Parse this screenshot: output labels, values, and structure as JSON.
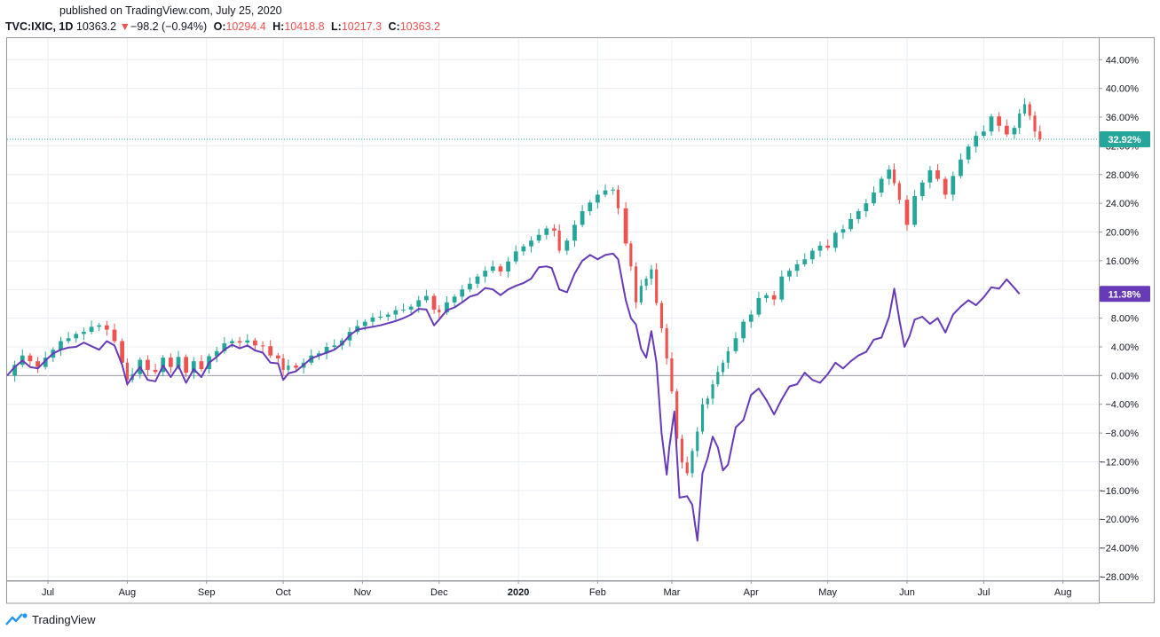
{
  "header": {
    "published": "published on TradingView.com, July 25, 2020",
    "symbol": "TVC:IXIC, 1D",
    "last": "10363.2",
    "change_arrow": "▼",
    "change": "−98.2 (−0.94%)",
    "open_label": "O:",
    "open": "10294.4",
    "high_label": "H:",
    "high": "10418.8",
    "low_label": "L:",
    "low": "10217.3",
    "close_label": "C:",
    "close": "10363.2"
  },
  "footer": {
    "brand": "TradingView",
    "logo_icon": "tradingview-logo-icon"
  },
  "colors": {
    "up": "#26a69a",
    "down": "#ef5350",
    "compare_line": "#673ab7",
    "last_price_badge": "#26a69a",
    "compare_badge": "#673ab7",
    "grid": "#e9eef2",
    "zero_line": "#9598a1"
  },
  "chart_data": {
    "type": "line",
    "y_axis_ticks": [
      "44.00%",
      "40.00%",
      "36.00%",
      "32.00%",
      "28.00%",
      "24.00%",
      "20.00%",
      "16.00%",
      "12.00%",
      "8.00%",
      "4.00%",
      "0.00%",
      "−4.00%",
      "−8.00%",
      "−12.00%",
      "−16.00%",
      "−20.00%",
      "−24.00%",
      "−28.00%"
    ],
    "y_tick_values": [
      44,
      40,
      36,
      32,
      28,
      24,
      20,
      16,
      12,
      8,
      4,
      0,
      -4,
      -8,
      -12,
      -16,
      -20,
      -24,
      -28
    ],
    "ylim": [
      -28.5,
      47
    ],
    "x_axis_labels": [
      {
        "label": "Jul",
        "bold": false,
        "d": 16
      },
      {
        "label": "Aug",
        "bold": false,
        "d": 47
      },
      {
        "label": "Sep",
        "bold": false,
        "d": 78
      },
      {
        "label": "Oct",
        "bold": false,
        "d": 108
      },
      {
        "label": "Nov",
        "bold": false,
        "d": 139
      },
      {
        "label": "Dec",
        "bold": false,
        "d": 169
      },
      {
        "label": "2020",
        "bold": true,
        "d": 200
      },
      {
        "label": "Feb",
        "bold": false,
        "d": 231
      },
      {
        "label": "Mar",
        "bold": false,
        "d": 260
      },
      {
        "label": "Apr",
        "bold": false,
        "d": 291
      },
      {
        "label": "May",
        "bold": false,
        "d": 321
      },
      {
        "label": "Jun",
        "bold": false,
        "d": 352
      },
      {
        "label": "Jul",
        "bold": false,
        "d": 382
      },
      {
        "label": "Aug",
        "bold": false,
        "d": 413
      }
    ],
    "x_domain_days": [
      0,
      427
    ],
    "last_value_badge": "32.92%",
    "last_value": 32.92,
    "compare_badge": "11.38%",
    "compare_value": 11.38,
    "grid": true,
    "series": [
      {
        "style": "candlestick",
        "points": [
          [
            0,
            0.0
          ],
          [
            3,
            1.5
          ],
          [
            6,
            2.8
          ],
          [
            9,
            2.0
          ],
          [
            12,
            1.2
          ],
          [
            15,
            2.5
          ],
          [
            18,
            3.6
          ],
          [
            21,
            4.8
          ],
          [
            24,
            5.2
          ],
          [
            27,
            5.8
          ],
          [
            30,
            6.1
          ],
          [
            33,
            6.8
          ],
          [
            36,
            7.0
          ],
          [
            39,
            6.4
          ],
          [
            42,
            4.8
          ],
          [
            45,
            1.8
          ],
          [
            47,
            -0.6
          ],
          [
            49,
            0.2
          ],
          [
            52,
            2.2
          ],
          [
            55,
            0.8
          ],
          [
            58,
            0.5
          ],
          [
            61,
            2.5
          ],
          [
            64,
            1.2
          ],
          [
            67,
            2.6
          ],
          [
            70,
            0.4
          ],
          [
            73,
            2.0
          ],
          [
            76,
            0.9
          ],
          [
            79,
            2.7
          ],
          [
            82,
            3.4
          ],
          [
            85,
            4.5
          ],
          [
            88,
            4.8
          ],
          [
            91,
            4.6
          ],
          [
            94,
            4.9
          ],
          [
            97,
            4.2
          ],
          [
            100,
            4.1
          ],
          [
            103,
            2.8
          ],
          [
            106,
            2.4
          ],
          [
            108,
            0.8
          ],
          [
            110,
            1.4
          ],
          [
            113,
            1.1
          ],
          [
            116,
            1.8
          ],
          [
            119,
            2.8
          ],
          [
            122,
            3.1
          ],
          [
            125,
            4.0
          ],
          [
            128,
            4.2
          ],
          [
            131,
            4.9
          ],
          [
            134,
            6.1
          ],
          [
            137,
            6.9
          ],
          [
            140,
            7.5
          ],
          [
            143,
            8.1
          ],
          [
            146,
            8.2
          ],
          [
            149,
            8.5
          ],
          [
            152,
            9.1
          ],
          [
            155,
            9.2
          ],
          [
            158,
            9.6
          ],
          [
            161,
            10.5
          ],
          [
            164,
            11.1
          ],
          [
            167,
            9.2
          ],
          [
            169,
            8.8
          ],
          [
            172,
            10.2
          ],
          [
            175,
            11.0
          ],
          [
            178,
            12.0
          ],
          [
            181,
            12.8
          ],
          [
            184,
            13.8
          ],
          [
            187,
            14.6
          ],
          [
            190,
            15.2
          ],
          [
            193,
            14.5
          ],
          [
            196,
            15.9
          ],
          [
            199,
            17.3
          ],
          [
            202,
            18.0
          ],
          [
            205,
            18.8
          ],
          [
            208,
            19.6
          ],
          [
            211,
            20.5
          ],
          [
            214,
            20.2
          ],
          [
            216,
            17.4
          ],
          [
            219,
            18.8
          ],
          [
            222,
            21.0
          ],
          [
            225,
            22.9
          ],
          [
            228,
            24.1
          ],
          [
            231,
            25.2
          ],
          [
            234,
            25.8
          ],
          [
            237,
            25.9
          ],
          [
            239,
            23.3
          ],
          [
            242,
            18.4
          ],
          [
            244,
            15.2
          ],
          [
            246,
            10.2
          ],
          [
            248,
            12.5
          ],
          [
            250,
            13.5
          ],
          [
            252,
            14.8
          ],
          [
            254,
            10.1
          ],
          [
            256,
            6.6
          ],
          [
            258,
            2.4
          ],
          [
            260,
            -2.2
          ],
          [
            262,
            -8.8
          ],
          [
            264,
            -12.1
          ],
          [
            266,
            -13.6
          ],
          [
            268,
            -10.5
          ],
          [
            270,
            -7.8
          ],
          [
            272,
            -4.0
          ],
          [
            274,
            -3.2
          ],
          [
            276,
            -1.2
          ],
          [
            278,
            0.5
          ],
          [
            280,
            1.8
          ],
          [
            282,
            3.4
          ],
          [
            285,
            5.2
          ],
          [
            288,
            7.5
          ],
          [
            291,
            8.5
          ],
          [
            294,
            10.8
          ],
          [
            297,
            11.2
          ],
          [
            300,
            10.6
          ],
          [
            303,
            13.8
          ],
          [
            306,
            14.6
          ],
          [
            309,
            15.5
          ],
          [
            312,
            16.2
          ],
          [
            315,
            17.4
          ],
          [
            318,
            18.1
          ],
          [
            321,
            17.8
          ],
          [
            324,
            19.9
          ],
          [
            327,
            20.4
          ],
          [
            330,
            21.8
          ],
          [
            333,
            22.9
          ],
          [
            336,
            24.0
          ],
          [
            339,
            25.5
          ],
          [
            342,
            27.4
          ],
          [
            345,
            28.7
          ],
          [
            347,
            26.8
          ],
          [
            349,
            24.5
          ],
          [
            352,
            21.0
          ],
          [
            355,
            25.0
          ],
          [
            358,
            26.9
          ],
          [
            361,
            28.6
          ],
          [
            364,
            27.4
          ],
          [
            367,
            25.2
          ],
          [
            370,
            27.8
          ],
          [
            373,
            30.1
          ],
          [
            376,
            31.9
          ],
          [
            379,
            33.4
          ],
          [
            382,
            34.0
          ],
          [
            385,
            36.1
          ],
          [
            388,
            34.8
          ],
          [
            391,
            33.6
          ],
          [
            394,
            34.5
          ],
          [
            396,
            36.5
          ],
          [
            398,
            37.8
          ],
          [
            400,
            36.2
          ],
          [
            402,
            34.0
          ],
          [
            404,
            32.92
          ]
        ]
      },
      {
        "style": "line",
        "points": [
          [
            0,
            0.0
          ],
          [
            3,
            1.2
          ],
          [
            6,
            2.1
          ],
          [
            9,
            1.2
          ],
          [
            12,
            1.0
          ],
          [
            15,
            2.1
          ],
          [
            18,
            3.1
          ],
          [
            21,
            3.6
          ],
          [
            24,
            3.9
          ],
          [
            27,
            4.0
          ],
          [
            30,
            4.6
          ],
          [
            33,
            4.1
          ],
          [
            36,
            3.6
          ],
          [
            39,
            4.8
          ],
          [
            42,
            4.2
          ],
          [
            45,
            1.5
          ],
          [
            47,
            -1.2
          ],
          [
            49,
            -0.2
          ],
          [
            52,
            1.2
          ],
          [
            55,
            -0.6
          ],
          [
            58,
            -0.8
          ],
          [
            61,
            1.4
          ],
          [
            64,
            -0.2
          ],
          [
            67,
            1.4
          ],
          [
            70,
            -1.0
          ],
          [
            73,
            0.9
          ],
          [
            76,
            -0.2
          ],
          [
            79,
            1.8
          ],
          [
            82,
            2.6
          ],
          [
            85,
            3.6
          ],
          [
            88,
            4.3
          ],
          [
            91,
            3.8
          ],
          [
            94,
            4.2
          ],
          [
            97,
            3.5
          ],
          [
            100,
            3.2
          ],
          [
            103,
            1.8
          ],
          [
            106,
            1.7
          ],
          [
            108,
            -0.6
          ],
          [
            110,
            0.3
          ],
          [
            113,
            0.6
          ],
          [
            116,
            1.5
          ],
          [
            119,
            2.4
          ],
          [
            122,
            2.8
          ],
          [
            125,
            3.2
          ],
          [
            128,
            3.6
          ],
          [
            131,
            4.4
          ],
          [
            134,
            5.6
          ],
          [
            137,
            6.4
          ],
          [
            140,
            6.6
          ],
          [
            143,
            6.8
          ],
          [
            146,
            7.0
          ],
          [
            149,
            7.3
          ],
          [
            152,
            7.6
          ],
          [
            155,
            8.0
          ],
          [
            158,
            8.5
          ],
          [
            161,
            9.3
          ],
          [
            164,
            9.2
          ],
          [
            167,
            7.0
          ],
          [
            169,
            7.8
          ],
          [
            172,
            9.1
          ],
          [
            175,
            9.5
          ],
          [
            178,
            10.2
          ],
          [
            181,
            11.0
          ],
          [
            184,
            11.3
          ],
          [
            187,
            12.2
          ],
          [
            190,
            12.0
          ],
          [
            193,
            11.2
          ],
          [
            196,
            12.0
          ],
          [
            199,
            12.5
          ],
          [
            202,
            12.9
          ],
          [
            205,
            13.5
          ],
          [
            208,
            15.1
          ],
          [
            211,
            15.2
          ],
          [
            213,
            15.0
          ],
          [
            216,
            12.0
          ],
          [
            219,
            11.6
          ],
          [
            222,
            14.2
          ],
          [
            225,
            16.0
          ],
          [
            228,
            16.8
          ],
          [
            231,
            16.2
          ],
          [
            234,
            16.8
          ],
          [
            237,
            17.0
          ],
          [
            239,
            16.2
          ],
          [
            242,
            10.5
          ],
          [
            244,
            8.0
          ],
          [
            246,
            7.1
          ],
          [
            248,
            3.7
          ],
          [
            250,
            2.5
          ],
          [
            252,
            6.2
          ],
          [
            254,
            1.8
          ],
          [
            256,
            -8.0
          ],
          [
            258,
            -13.8
          ],
          [
            259,
            -10.0
          ],
          [
            261,
            -5.0
          ],
          [
            263,
            -17.0
          ],
          [
            266,
            -16.8
          ],
          [
            268,
            -18.0
          ],
          [
            270,
            -23.0
          ],
          [
            272,
            -13.6
          ],
          [
            274,
            -11.5
          ],
          [
            276,
            -8.5
          ],
          [
            278,
            -10.0
          ],
          [
            280,
            -13.2
          ],
          [
            282,
            -12.4
          ],
          [
            285,
            -7.2
          ],
          [
            288,
            -6.2
          ],
          [
            291,
            -2.7
          ],
          [
            294,
            -1.8
          ],
          [
            297,
            -3.4
          ],
          [
            300,
            -5.4
          ],
          [
            303,
            -3.3
          ],
          [
            306,
            -1.5
          ],
          [
            309,
            -1.2
          ],
          [
            312,
            0.4
          ],
          [
            315,
            -0.6
          ],
          [
            318,
            -1.0
          ],
          [
            321,
            0.2
          ],
          [
            324,
            1.8
          ],
          [
            327,
            1.0
          ],
          [
            330,
            2.0
          ],
          [
            333,
            2.8
          ],
          [
            336,
            3.3
          ],
          [
            339,
            5.0
          ],
          [
            342,
            5.3
          ],
          [
            345,
            8.2
          ],
          [
            347,
            12.1
          ],
          [
            349,
            7.8
          ],
          [
            351,
            4.0
          ],
          [
            353,
            5.5
          ],
          [
            355,
            7.8
          ],
          [
            358,
            8.2
          ],
          [
            361,
            7.2
          ],
          [
            364,
            8.0
          ],
          [
            367,
            6.0
          ],
          [
            370,
            8.5
          ],
          [
            373,
            9.6
          ],
          [
            376,
            10.5
          ],
          [
            379,
            9.8
          ],
          [
            382,
            10.9
          ],
          [
            385,
            12.3
          ],
          [
            388,
            12.1
          ],
          [
            391,
            13.4
          ],
          [
            394,
            12.2
          ],
          [
            396,
            11.38
          ]
        ]
      }
    ]
  }
}
